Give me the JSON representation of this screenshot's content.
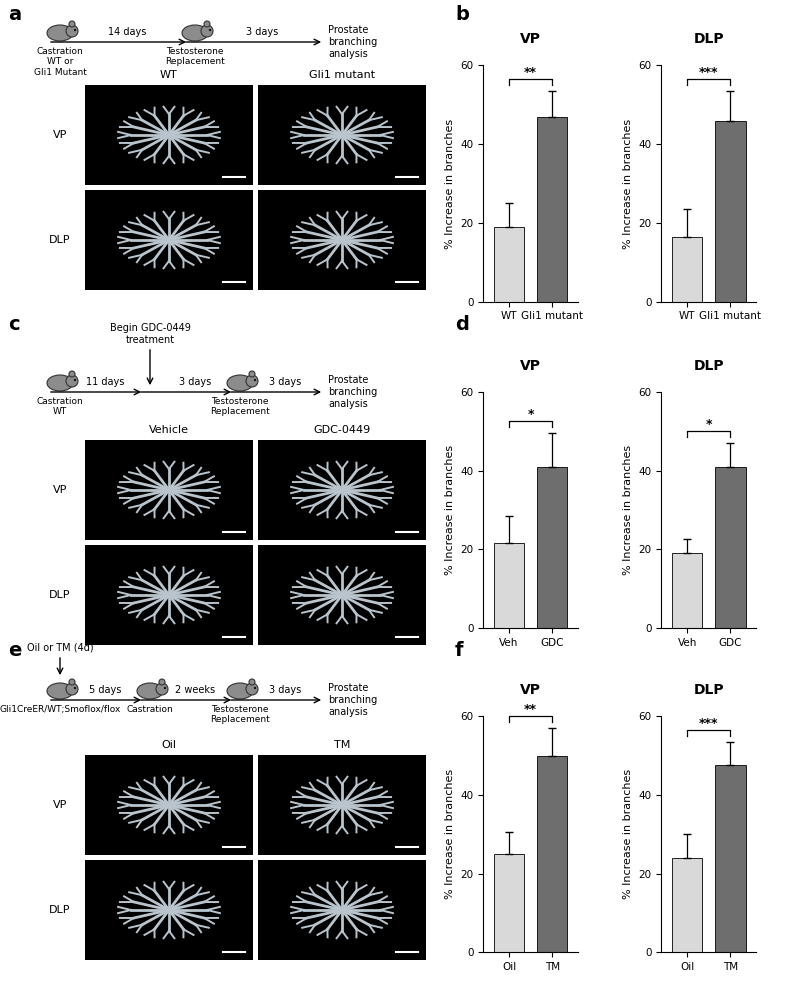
{
  "panels": [
    {
      "letter": "a",
      "timeline": {
        "mice": [
          "Castration\nWT or\nGli1 Mutant",
          "Testosterone\nReplacement"
        ],
        "intervals": [
          "14 days",
          "3 days"
        ],
        "end": "Prostate\nbranching\nanalysis"
      },
      "images": {
        "columns": [
          "WT",
          "Gli1 mutant"
        ],
        "rows": [
          "VP",
          "DLP"
        ]
      }
    },
    {
      "letter": "c",
      "timeline": {
        "mice": [
          "Castration\nWT",
          "Testosterone\nReplacement"
        ],
        "intervals": [
          "11 days",
          "3 days",
          "3 days"
        ],
        "treatment": "Begin GDC-0449\ntreatment",
        "end": "Prostate\nbranching\nanalysis"
      },
      "images": {
        "columns": [
          "Vehicle",
          "GDC-0449"
        ],
        "rows": [
          "VP",
          "DLP"
        ]
      }
    },
    {
      "letter": "e",
      "timeline": {
        "mice": [
          "Gli1CreER/WT;Smoflox/flox",
          "Castration",
          "Testosterone\nReplacement"
        ],
        "intervals": [
          "5 days",
          "2 weeks",
          "3 days"
        ],
        "treatment": "Oil or TM (4d)",
        "end": "Prostate\nbranching\nanalysis"
      },
      "images": {
        "columns": [
          "Oil",
          "TM"
        ],
        "rows": [
          "VP",
          "DLP"
        ]
      }
    }
  ],
  "chart_panels": [
    "b",
    "d",
    "f"
  ],
  "chart_data": [
    {
      "type": "bar",
      "title": "VP",
      "ylabel": "% Increase in branches",
      "categories": [
        "WT",
        "Gli1 mutant"
      ],
      "values": [
        19,
        47
      ],
      "errors": [
        6,
        6.5
      ],
      "annotation": "**",
      "colors": [
        "#d9d9d9",
        "#6e6e6e"
      ],
      "ylim": [
        0,
        60
      ],
      "yticks": [
        0,
        20,
        40,
        60
      ]
    },
    {
      "type": "bar",
      "title": "DLP",
      "ylabel": "% Increase in branches",
      "categories": [
        "WT",
        "Gli1 mutant"
      ],
      "values": [
        16.5,
        46
      ],
      "errors": [
        7,
        7.5
      ],
      "annotation": "***",
      "colors": [
        "#d9d9d9",
        "#6e6e6e"
      ],
      "ylim": [
        0,
        60
      ],
      "yticks": [
        0,
        20,
        40,
        60
      ]
    },
    {
      "type": "bar",
      "title": "VP",
      "ylabel": "% Increase in branches",
      "categories": [
        "Veh",
        "GDC"
      ],
      "values": [
        21.5,
        41
      ],
      "errors": [
        7,
        8.5
      ],
      "annotation": "*",
      "colors": [
        "#d9d9d9",
        "#6e6e6e"
      ],
      "ylim": [
        0,
        60
      ],
      "yticks": [
        0,
        20,
        40,
        60
      ]
    },
    {
      "type": "bar",
      "title": "DLP",
      "ylabel": "% Increase in branches",
      "categories": [
        "Veh",
        "GDC"
      ],
      "values": [
        19,
        41
      ],
      "errors": [
        3.5,
        6
      ],
      "annotation": "*",
      "colors": [
        "#d9d9d9",
        "#6e6e6e"
      ],
      "ylim": [
        0,
        60
      ],
      "yticks": [
        0,
        20,
        40,
        60
      ]
    },
    {
      "type": "bar",
      "title": "VP",
      "ylabel": "% Increase in branches",
      "categories": [
        "Oil",
        "TM"
      ],
      "values": [
        25,
        50
      ],
      "errors": [
        5.5,
        7
      ],
      "annotation": "**",
      "colors": [
        "#d9d9d9",
        "#6e6e6e"
      ],
      "ylim": [
        0,
        60
      ],
      "yticks": [
        0,
        20,
        40,
        60
      ]
    },
    {
      "type": "bar",
      "title": "DLP",
      "ylabel": "% Increase in branches",
      "categories": [
        "Oil",
        "TM"
      ],
      "values": [
        24,
        47.5
      ],
      "errors": [
        6,
        6
      ],
      "annotation": "***",
      "colors": [
        "#d9d9d9",
        "#6e6e6e"
      ],
      "ylim": [
        0,
        60
      ],
      "yticks": [
        0,
        20,
        40,
        60
      ]
    }
  ]
}
